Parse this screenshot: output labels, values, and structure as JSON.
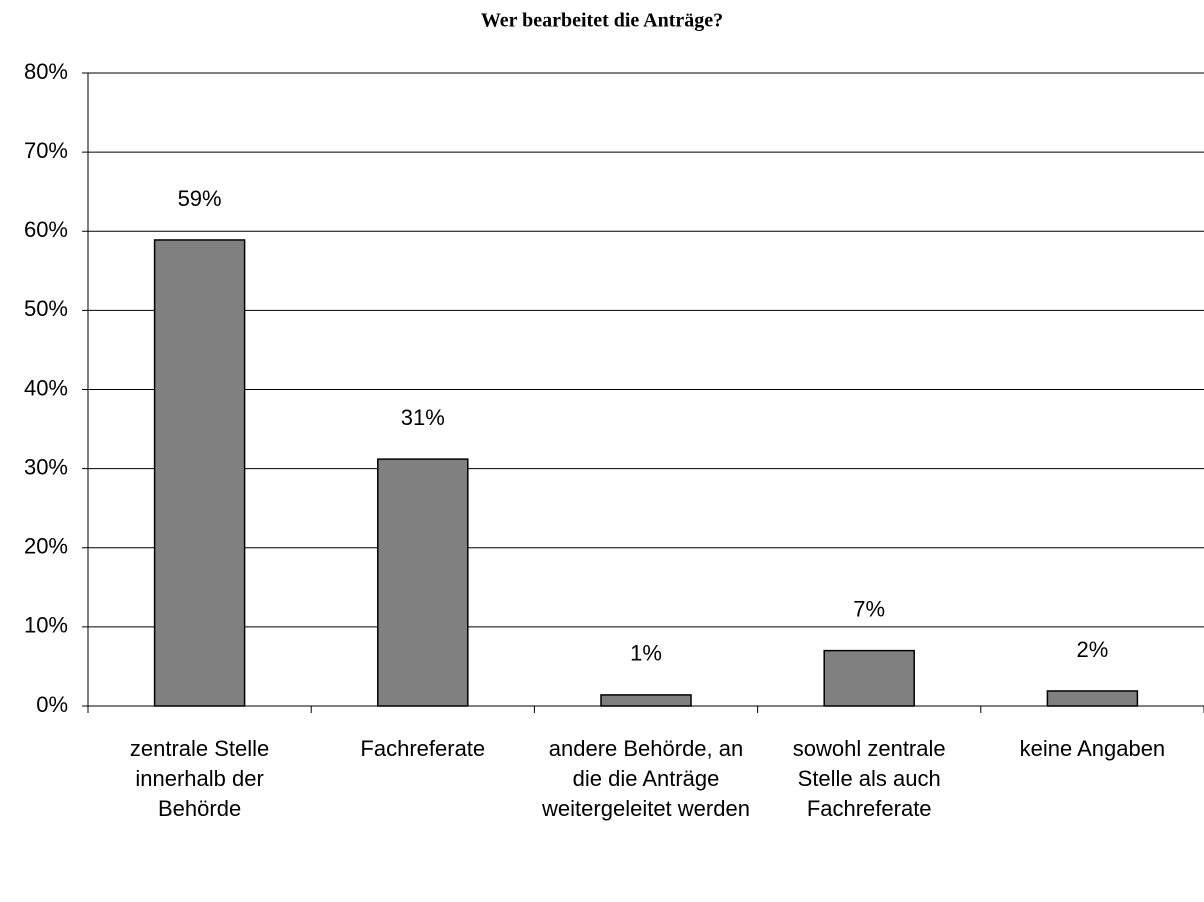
{
  "chart_data": {
    "type": "bar",
    "title": "Wer bearbeitet die Anträge?",
    "categories": [
      "zentrale Stelle innerhalb der Behörde",
      "Fachreferate",
      "andere Behörde, an die die Anträge weitergeleitet werden",
      "sowohl zentrale Stelle als auch Fachreferate",
      "keine Angaben"
    ],
    "values": [
      58.9,
      31.2,
      1.4,
      7,
      1.9
    ],
    "value_labels": [
      "59%",
      "31%",
      "1%",
      "7%",
      "2%"
    ],
    "color": "#808080",
    "ylim": [
      0,
      80
    ],
    "yticks": [
      {
        "value": 0,
        "label": "0%"
      },
      {
        "value": 10,
        "label": "10%"
      },
      {
        "value": 20,
        "label": "20%"
      },
      {
        "value": 30,
        "label": "30%"
      },
      {
        "value": 40,
        "label": "40%"
      },
      {
        "value": 50,
        "label": "50%"
      },
      {
        "value": 60,
        "label": "60%"
      },
      {
        "value": 70,
        "label": "70%"
      },
      {
        "value": 80,
        "label": "80%"
      }
    ],
    "grid": true
  }
}
